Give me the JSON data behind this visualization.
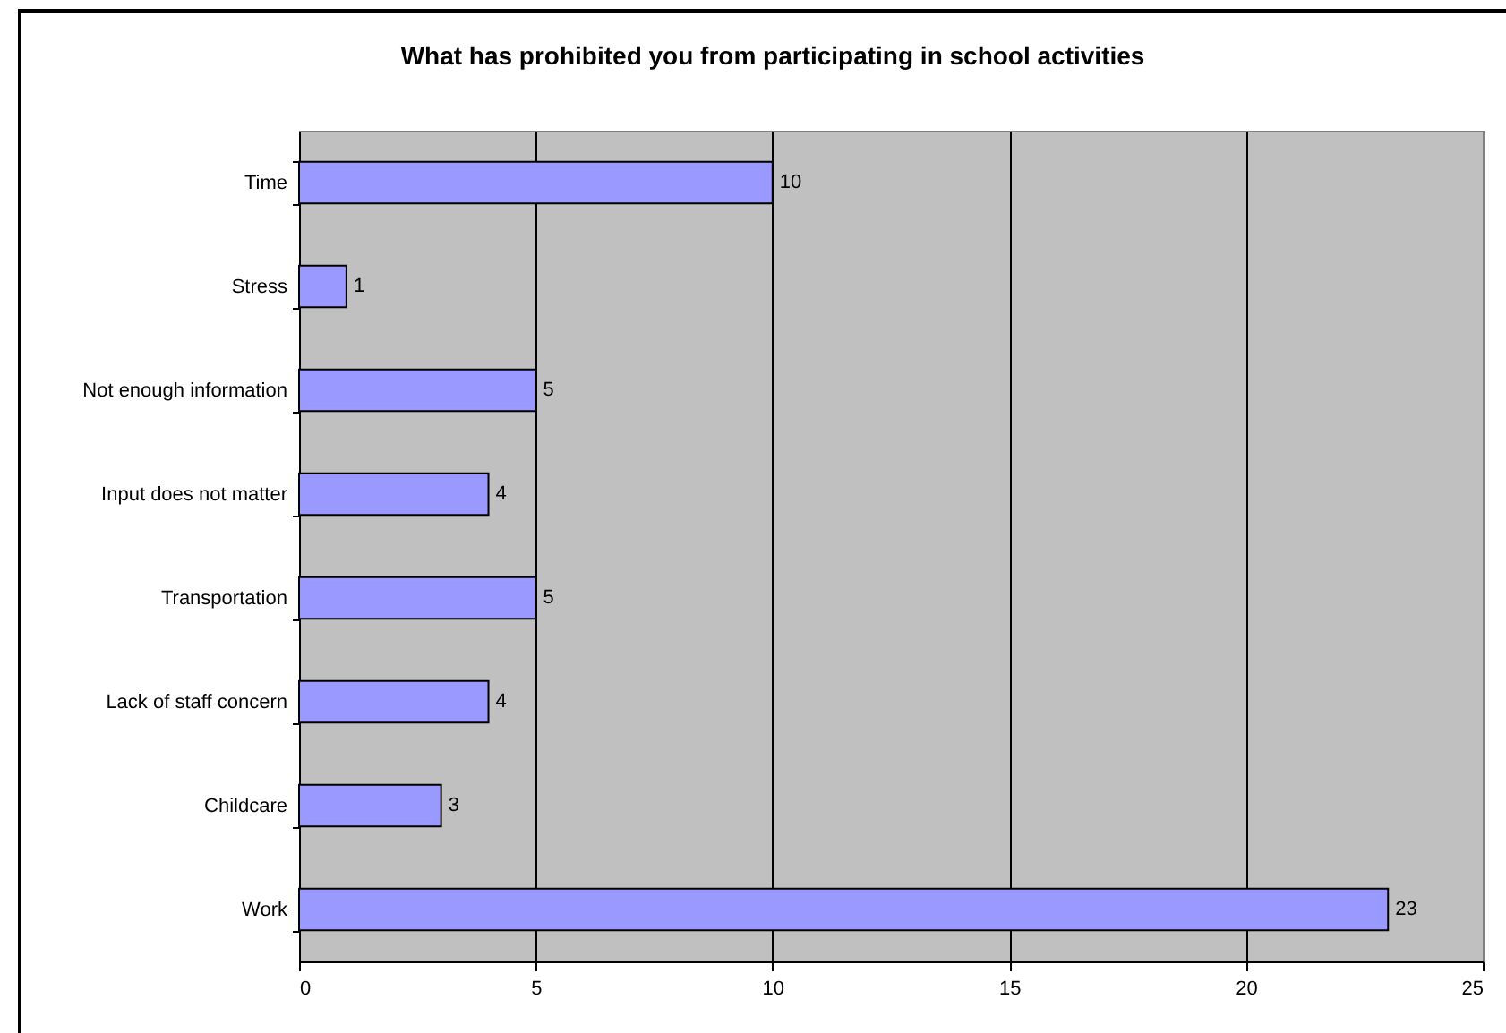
{
  "chart_data": {
    "type": "bar",
    "orientation": "horizontal",
    "title": "What has prohibited you from participating in school activities",
    "categories": [
      "Time",
      "Stress",
      "Not enough information",
      "Input does not matter",
      "Transportation",
      "Lack of staff concern",
      "Childcare",
      "Work"
    ],
    "values": [
      10,
      1,
      5,
      4,
      5,
      4,
      3,
      23
    ],
    "color": "#9999ff",
    "xlim": [
      0,
      25
    ],
    "xticks": [
      0,
      5,
      10,
      15,
      20,
      25
    ],
    "grid": "x",
    "data_labels": true
  }
}
